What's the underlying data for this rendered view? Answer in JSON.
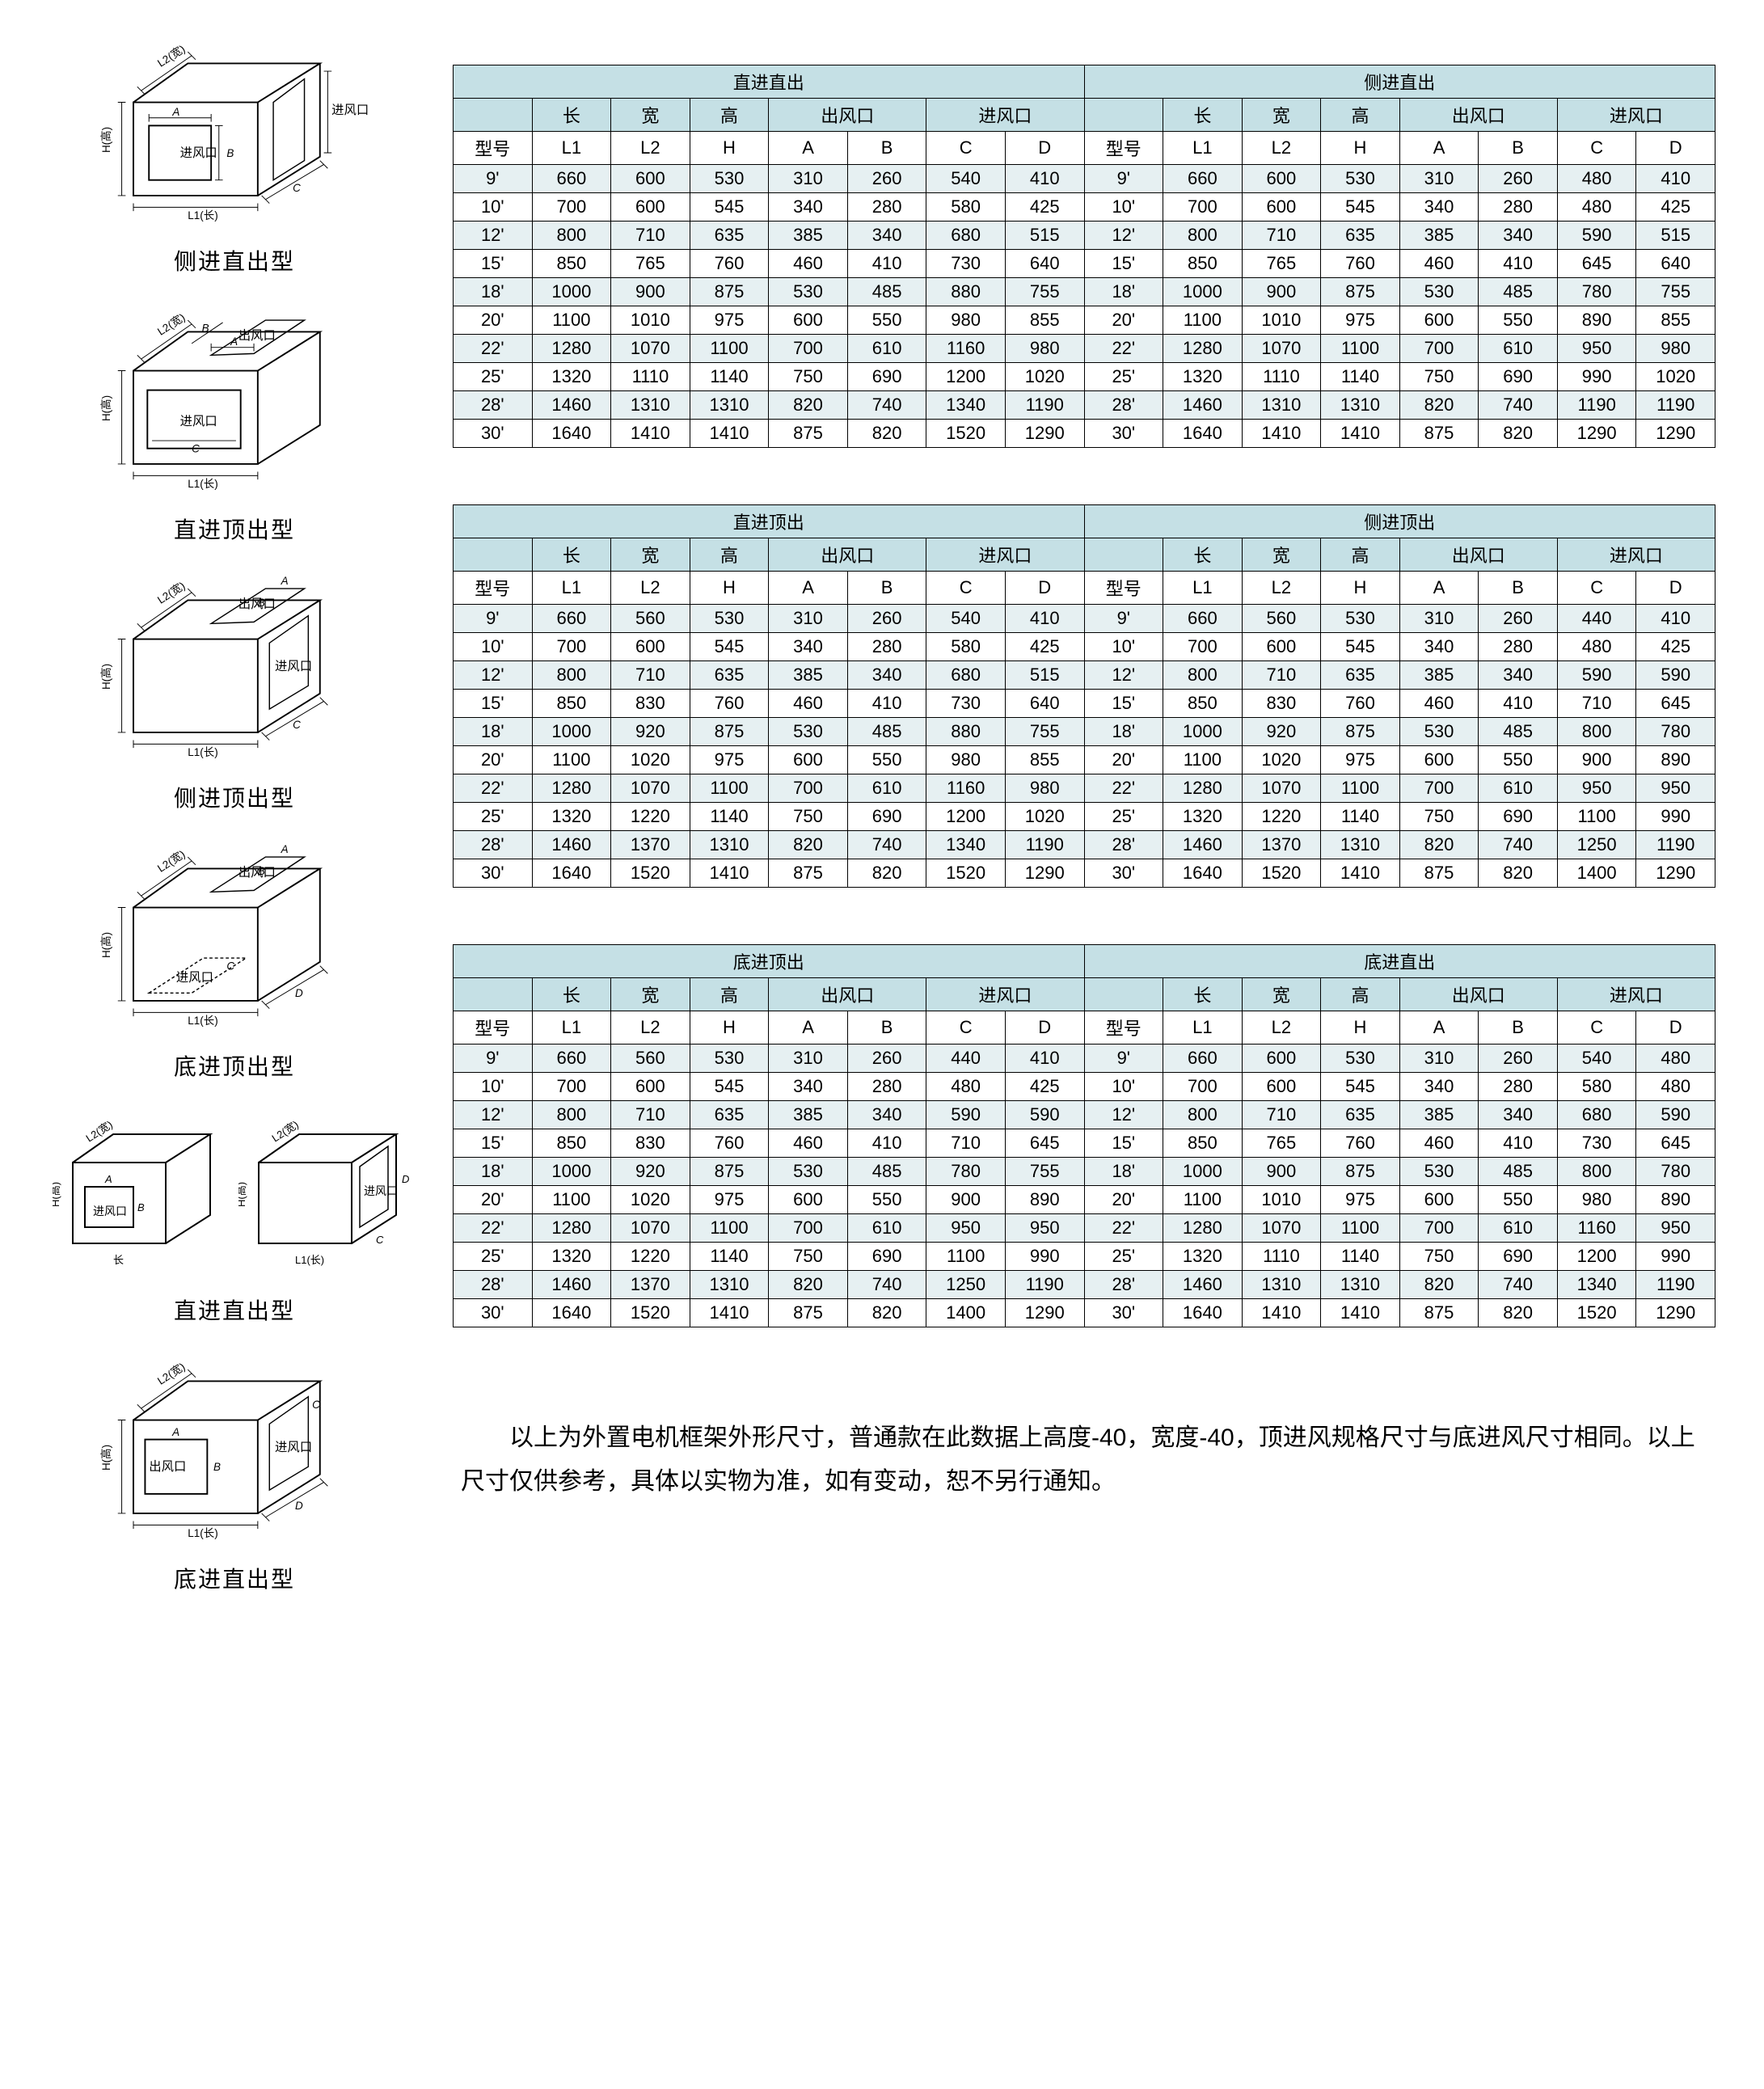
{
  "colors": {
    "header_bg": "#c5e0e5",
    "alt_row_bg": "#e6f0f2",
    "border": "#000000",
    "text": "#000000",
    "page_bg": "#ffffff"
  },
  "fonts": {
    "body_size": 22,
    "caption_size": 28,
    "note_size": 30
  },
  "diagram_labels": {
    "inlet": "进风口",
    "outlet": "出风口",
    "L1": "L1(长)",
    "L2": "L2(宽)",
    "H": "H(高)",
    "A": "A",
    "B": "B",
    "C": "C",
    "D": "D",
    "length": "长"
  },
  "diagrams": [
    {
      "caption": "侧进直出型"
    },
    {
      "caption": "直进顶出型"
    },
    {
      "caption": "侧进顶出型"
    },
    {
      "caption": "底进顶出型"
    },
    {
      "caption": "直进直出型"
    },
    {
      "caption": "底进直出型"
    }
  ],
  "table_headers": {
    "model": "型号",
    "length": "长",
    "width": "宽",
    "height": "高",
    "outlet": "出风口",
    "inlet": "进风口",
    "L1": "L1",
    "L2": "L2",
    "H": "H",
    "A": "A",
    "B": "B",
    "C": "C",
    "D": "D"
  },
  "models": [
    "9'",
    "10'",
    "12'",
    "15'",
    "18'",
    "20'",
    "22'",
    "25'",
    "28'",
    "30'"
  ],
  "tables": [
    {
      "left_title": "直进直出",
      "right_title": "侧进直出",
      "left_rows": [
        [
          660,
          600,
          530,
          310,
          260,
          540,
          410
        ],
        [
          700,
          600,
          545,
          340,
          280,
          580,
          425
        ],
        [
          800,
          710,
          635,
          385,
          340,
          680,
          515
        ],
        [
          850,
          765,
          760,
          460,
          410,
          730,
          640
        ],
        [
          1000,
          900,
          875,
          530,
          485,
          880,
          755
        ],
        [
          1100,
          1010,
          975,
          600,
          550,
          980,
          855
        ],
        [
          1280,
          1070,
          1100,
          700,
          610,
          1160,
          980
        ],
        [
          1320,
          1110,
          1140,
          750,
          690,
          1200,
          1020
        ],
        [
          1460,
          1310,
          1310,
          820,
          740,
          1340,
          1190
        ],
        [
          1640,
          1410,
          1410,
          875,
          820,
          1520,
          1290
        ]
      ],
      "right_rows": [
        [
          660,
          600,
          530,
          310,
          260,
          480,
          410
        ],
        [
          700,
          600,
          545,
          340,
          280,
          480,
          425
        ],
        [
          800,
          710,
          635,
          385,
          340,
          590,
          515
        ],
        [
          850,
          765,
          760,
          460,
          410,
          645,
          640
        ],
        [
          1000,
          900,
          875,
          530,
          485,
          780,
          755
        ],
        [
          1100,
          1010,
          975,
          600,
          550,
          890,
          855
        ],
        [
          1280,
          1070,
          1100,
          700,
          610,
          950,
          980
        ],
        [
          1320,
          1110,
          1140,
          750,
          690,
          990,
          1020
        ],
        [
          1460,
          1310,
          1310,
          820,
          740,
          1190,
          1190
        ],
        [
          1640,
          1410,
          1410,
          875,
          820,
          1290,
          1290
        ]
      ]
    },
    {
      "left_title": "直进顶出",
      "right_title": "侧进顶出",
      "left_rows": [
        [
          660,
          560,
          530,
          310,
          260,
          540,
          410
        ],
        [
          700,
          600,
          545,
          340,
          280,
          580,
          425
        ],
        [
          800,
          710,
          635,
          385,
          340,
          680,
          515
        ],
        [
          850,
          830,
          760,
          460,
          410,
          730,
          640
        ],
        [
          1000,
          920,
          875,
          530,
          485,
          880,
          755
        ],
        [
          1100,
          1020,
          975,
          600,
          550,
          980,
          855
        ],
        [
          1280,
          1070,
          1100,
          700,
          610,
          1160,
          980
        ],
        [
          1320,
          1220,
          1140,
          750,
          690,
          1200,
          1020
        ],
        [
          1460,
          1370,
          1310,
          820,
          740,
          1340,
          1190
        ],
        [
          1640,
          1520,
          1410,
          875,
          820,
          1520,
          1290
        ]
      ],
      "right_rows": [
        [
          660,
          560,
          530,
          310,
          260,
          440,
          410
        ],
        [
          700,
          600,
          545,
          340,
          280,
          480,
          425
        ],
        [
          800,
          710,
          635,
          385,
          340,
          590,
          590
        ],
        [
          850,
          830,
          760,
          460,
          410,
          710,
          645
        ],
        [
          1000,
          920,
          875,
          530,
          485,
          800,
          780
        ],
        [
          1100,
          1020,
          975,
          600,
          550,
          900,
          890
        ],
        [
          1280,
          1070,
          1100,
          700,
          610,
          950,
          950
        ],
        [
          1320,
          1220,
          1140,
          750,
          690,
          1100,
          990
        ],
        [
          1460,
          1370,
          1310,
          820,
          740,
          1250,
          1190
        ],
        [
          1640,
          1520,
          1410,
          875,
          820,
          1400,
          1290
        ]
      ]
    },
    {
      "left_title": "底进顶出",
      "right_title": "底进直出",
      "left_rows": [
        [
          660,
          560,
          530,
          310,
          260,
          440,
          410
        ],
        [
          700,
          600,
          545,
          340,
          280,
          480,
          425
        ],
        [
          800,
          710,
          635,
          385,
          340,
          590,
          590
        ],
        [
          850,
          830,
          760,
          460,
          410,
          710,
          645
        ],
        [
          1000,
          920,
          875,
          530,
          485,
          780,
          755
        ],
        [
          1100,
          1020,
          975,
          600,
          550,
          900,
          890
        ],
        [
          1280,
          1070,
          1100,
          700,
          610,
          950,
          950
        ],
        [
          1320,
          1220,
          1140,
          750,
          690,
          1100,
          990
        ],
        [
          1460,
          1370,
          1310,
          820,
          740,
          1250,
          1190
        ],
        [
          1640,
          1520,
          1410,
          875,
          820,
          1400,
          1290
        ]
      ],
      "right_rows": [
        [
          660,
          600,
          530,
          310,
          260,
          540,
          480
        ],
        [
          700,
          600,
          545,
          340,
          280,
          580,
          480
        ],
        [
          800,
          710,
          635,
          385,
          340,
          680,
          590
        ],
        [
          850,
          765,
          760,
          460,
          410,
          730,
          645
        ],
        [
          1000,
          900,
          875,
          530,
          485,
          800,
          780
        ],
        [
          1100,
          1010,
          975,
          600,
          550,
          980,
          890
        ],
        [
          1280,
          1070,
          1100,
          700,
          610,
          1160,
          950
        ],
        [
          1320,
          1110,
          1140,
          750,
          690,
          1200,
          990
        ],
        [
          1460,
          1310,
          1310,
          820,
          740,
          1340,
          1190
        ],
        [
          1640,
          1410,
          1410,
          875,
          820,
          1520,
          1290
        ]
      ]
    }
  ],
  "note": "以上为外置电机框架外形尺寸，普通款在此数据上高度-40，宽度-40，顶进风规格尺寸与底进风尺寸相同。以上尺寸仅供参考，具体以实物为准，如有变动，恕不另行通知。"
}
